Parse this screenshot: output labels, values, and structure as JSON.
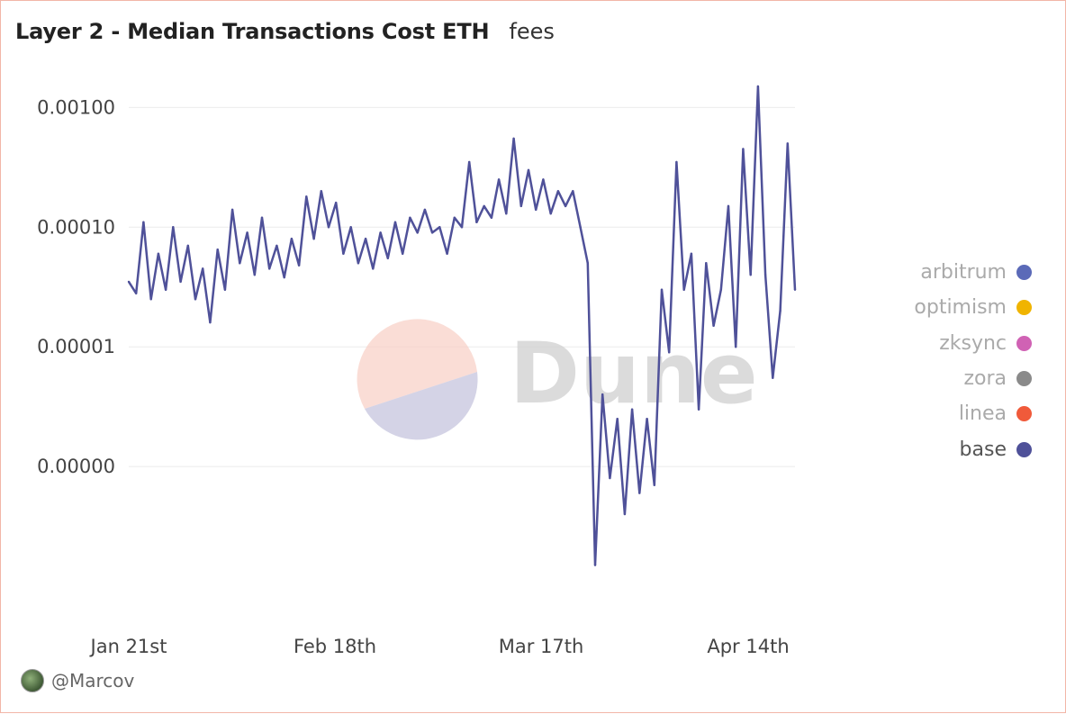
{
  "header": {
    "title": "Layer 2 - Median Transactions Cost ETH",
    "subtitle": "fees"
  },
  "footer": {
    "author": "@Marcov"
  },
  "watermark": {
    "text": "Dune"
  },
  "colors": {
    "border": "#f2b6a8",
    "arbitrum": "#5b6ab8",
    "optimism": "#f0b400",
    "zksync": "#d062b4",
    "zora": "#8a8a8a",
    "linea": "#f05a3a",
    "base": "#4f5199"
  },
  "legend": [
    {
      "label": "arbitrum",
      "color": "#5b6ab8",
      "active": false
    },
    {
      "label": "optimism",
      "color": "#f0b400",
      "active": false
    },
    {
      "label": "zksync",
      "color": "#d062b4",
      "active": false
    },
    {
      "label": "zora",
      "color": "#8a8a8a",
      "active": false
    },
    {
      "label": "linea",
      "color": "#f05a3a",
      "active": false
    },
    {
      "label": "base",
      "color": "#4f5199",
      "active": true
    }
  ],
  "chart_data": {
    "type": "line",
    "title": "Layer 2 - Median Transactions Cost ETH",
    "subtitle": "fees",
    "yscale": "log",
    "ylim": [
      5e-08,
      0.0015
    ],
    "yticks": [
      0.001,
      0.0001,
      1e-05,
      1e-06
    ],
    "ytick_labels": [
      "0.00100",
      "0.00010",
      "0.00001",
      "0.00000"
    ],
    "xticks": [
      "Jan 21st",
      "Feb 18th",
      "Mar 17th",
      "Apr 14th"
    ],
    "xlim": [
      "2024-01-21",
      "2024-04-20"
    ],
    "grid": true,
    "legend_position": "right",
    "series": [
      {
        "name": "base",
        "color": "#4f5199",
        "points": [
          [
            "2024-01-21",
            3.5e-05
          ],
          [
            "2024-01-22",
            2.8e-05
          ],
          [
            "2024-01-23",
            0.00011
          ],
          [
            "2024-01-24",
            2.5e-05
          ],
          [
            "2024-01-25",
            6e-05
          ],
          [
            "2024-01-26",
            3e-05
          ],
          [
            "2024-01-27",
            0.0001
          ],
          [
            "2024-01-28",
            3.5e-05
          ],
          [
            "2024-01-29",
            7e-05
          ],
          [
            "2024-01-30",
            2.5e-05
          ],
          [
            "2024-01-31",
            4.5e-05
          ],
          [
            "2024-02-01",
            1.6e-05
          ],
          [
            "2024-02-02",
            6.5e-05
          ],
          [
            "2024-02-03",
            3e-05
          ],
          [
            "2024-02-04",
            0.00014
          ],
          [
            "2024-02-05",
            5e-05
          ],
          [
            "2024-02-06",
            9e-05
          ],
          [
            "2024-02-07",
            4e-05
          ],
          [
            "2024-02-08",
            0.00012
          ],
          [
            "2024-02-09",
            4.5e-05
          ],
          [
            "2024-02-10",
            7e-05
          ],
          [
            "2024-02-11",
            3.8e-05
          ],
          [
            "2024-02-12",
            8e-05
          ],
          [
            "2024-02-13",
            4.8e-05
          ],
          [
            "2024-02-14",
            0.00018
          ],
          [
            "2024-02-15",
            8e-05
          ],
          [
            "2024-02-16",
            0.0002
          ],
          [
            "2024-02-17",
            0.0001
          ],
          [
            "2024-02-18",
            0.00016
          ],
          [
            "2024-02-19",
            6e-05
          ],
          [
            "2024-02-20",
            0.0001
          ],
          [
            "2024-02-21",
            5e-05
          ],
          [
            "2024-02-22",
            8e-05
          ],
          [
            "2024-02-23",
            4.5e-05
          ],
          [
            "2024-02-24",
            9e-05
          ],
          [
            "2024-02-25",
            5.5e-05
          ],
          [
            "2024-02-26",
            0.00011
          ],
          [
            "2024-02-27",
            6e-05
          ],
          [
            "2024-02-28",
            0.00012
          ],
          [
            "2024-02-29",
            9e-05
          ],
          [
            "2024-03-01",
            0.00014
          ],
          [
            "2024-03-02",
            9e-05
          ],
          [
            "2024-03-03",
            0.0001
          ],
          [
            "2024-03-04",
            6e-05
          ],
          [
            "2024-03-05",
            0.00012
          ],
          [
            "2024-03-06",
            0.0001
          ],
          [
            "2024-03-07",
            0.00035
          ],
          [
            "2024-03-08",
            0.00011
          ],
          [
            "2024-03-09",
            0.00015
          ],
          [
            "2024-03-10",
            0.00012
          ],
          [
            "2024-03-11",
            0.00025
          ],
          [
            "2024-03-12",
            0.00013
          ],
          [
            "2024-03-13",
            0.00055
          ],
          [
            "2024-03-14",
            0.00015
          ],
          [
            "2024-03-15",
            0.0003
          ],
          [
            "2024-03-16",
            0.00014
          ],
          [
            "2024-03-17",
            0.00025
          ],
          [
            "2024-03-18",
            0.00013
          ],
          [
            "2024-03-19",
            0.0002
          ],
          [
            "2024-03-20",
            0.00015
          ],
          [
            "2024-03-21",
            0.0002
          ],
          [
            "2024-03-22",
            0.0001
          ],
          [
            "2024-03-23",
            5e-05
          ],
          [
            "2024-03-24",
            1.5e-07
          ],
          [
            "2024-03-25",
            4e-06
          ],
          [
            "2024-03-26",
            8e-07
          ],
          [
            "2024-03-27",
            2.5e-06
          ],
          [
            "2024-03-28",
            4e-07
          ],
          [
            "2024-03-29",
            3e-06
          ],
          [
            "2024-03-30",
            6e-07
          ],
          [
            "2024-03-31",
            2.5e-06
          ],
          [
            "2024-04-01",
            7e-07
          ],
          [
            "2024-04-02",
            3e-05
          ],
          [
            "2024-04-03",
            9e-06
          ],
          [
            "2024-04-04",
            0.00035
          ],
          [
            "2024-04-05",
            3e-05
          ],
          [
            "2024-04-06",
            6e-05
          ],
          [
            "2024-04-07",
            3e-06
          ],
          [
            "2024-04-08",
            5e-05
          ],
          [
            "2024-04-09",
            1.5e-05
          ],
          [
            "2024-04-10",
            3e-05
          ],
          [
            "2024-04-11",
            0.00015
          ],
          [
            "2024-04-12",
            1e-05
          ],
          [
            "2024-04-13",
            0.00045
          ],
          [
            "2024-04-14",
            4e-05
          ],
          [
            "2024-04-15",
            0.0015
          ],
          [
            "2024-04-16",
            4e-05
          ],
          [
            "2024-04-17",
            5.5e-06
          ],
          [
            "2024-04-18",
            2e-05
          ],
          [
            "2024-04-19",
            0.0005
          ],
          [
            "2024-04-20",
            3e-05
          ]
        ]
      }
    ]
  }
}
